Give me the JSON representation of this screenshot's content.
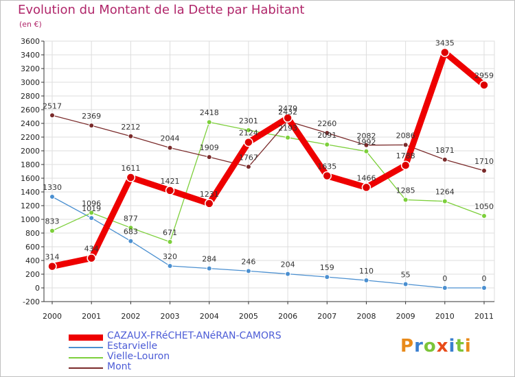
{
  "title": "Evolution du Montant de la Dette par Habitant",
  "subtitle": "(en €)",
  "logo": "Proxiti",
  "chart_data": {
    "type": "line",
    "x": [
      "2000",
      "2001",
      "2002",
      "2003",
      "2004",
      "2005",
      "2006",
      "2007",
      "2008",
      "2009",
      "2010",
      "2011"
    ],
    "ylim": [
      -200,
      3600
    ],
    "yticks": [
      -200,
      0,
      200,
      400,
      600,
      800,
      1000,
      1200,
      1400,
      1600,
      1800,
      2000,
      2200,
      2400,
      2600,
      2800,
      3000,
      3200,
      3400,
      3600
    ],
    "grid": true,
    "legend_position": "bottom-left",
    "series": [
      {
        "name": "CAZAUX-FRéCHET-ANéRAN-CAMORS",
        "color": "#ee0000",
        "values": [
          314,
          434,
          1611,
          1421,
          1231,
          2124,
          2479,
          1635,
          1466,
          1788,
          3435,
          2959
        ]
      },
      {
        "name": "Estarvielle",
        "color": "#4a8fd0",
        "values": [
          1330,
          1019,
          683,
          320,
          284,
          246,
          204,
          159,
          110,
          55,
          0,
          0
        ]
      },
      {
        "name": "Vielle-Louron",
        "color": "#7ccf3a",
        "values": [
          833,
          1096,
          877,
          671,
          2418,
          2301,
          2193,
          2091,
          1992,
          1285,
          1264,
          1050
        ]
      },
      {
        "name": "Mont",
        "color": "#7a2a2a",
        "values": [
          2517,
          2369,
          2212,
          2044,
          1909,
          1767,
          2432,
          2260,
          2082,
          2086,
          1871,
          1710
        ]
      }
    ]
  }
}
